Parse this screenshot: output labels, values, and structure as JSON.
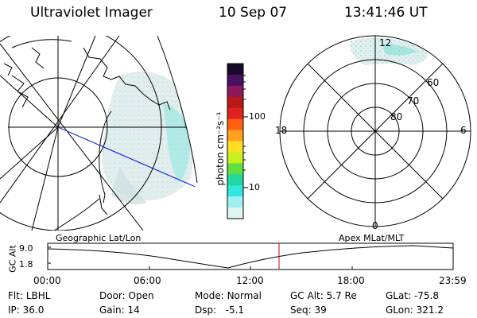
{
  "header": {
    "instrument": "Ultraviolet Imager",
    "date": "10 Sep 07",
    "time": "13:41:46 UT"
  },
  "colorbar": {
    "unit_label": "photon cm⁻²s⁻¹",
    "ticks": [
      "100",
      "10"
    ],
    "colors": [
      "#1a0a2a",
      "#4a1060",
      "#8a1a5a",
      "#b81a1a",
      "#e02020",
      "#ff6010",
      "#ffa020",
      "#ffe020",
      "#c8f020",
      "#60e040",
      "#20d8a0",
      "#30e8e0",
      "#a0f0f0",
      "#e0f4f4"
    ]
  },
  "polar": {
    "mlt_labels": {
      "top": "12",
      "left": "18",
      "right": "6",
      "bottom": "0"
    },
    "lat_labels": [
      "60",
      "70",
      "80"
    ]
  },
  "timeline": {
    "left_caption": "Geographic Lat/Lon",
    "right_caption": "Apex MLat/MLT",
    "axis_label": "GC Alt",
    "y_ticks": [
      "9.0",
      "1.8"
    ],
    "x_ticks": [
      "00:00",
      "06:00",
      "12:00",
      "18:00",
      "23:59"
    ],
    "current_time_color": "#cc0000"
  },
  "info": {
    "row1": [
      {
        "label": "Flt:",
        "value": "LBHL"
      },
      {
        "label": "Door:",
        "value": "Open"
      },
      {
        "label": "Mode:",
        "value": "Normal"
      },
      {
        "label": "GC Alt:",
        "value": "5.7 Re"
      },
      {
        "label": "GLat:",
        "value": "-75.8"
      }
    ],
    "row2": [
      {
        "label": "IP:",
        "value": "36.0"
      },
      {
        "label": "Gain:",
        "value": "14"
      },
      {
        "label": "Dsp:",
        "value": "-5.1"
      },
      {
        "label": "Seq:",
        "value": "39"
      },
      {
        "label": "GLon:",
        "value": "321.2"
      }
    ]
  }
}
